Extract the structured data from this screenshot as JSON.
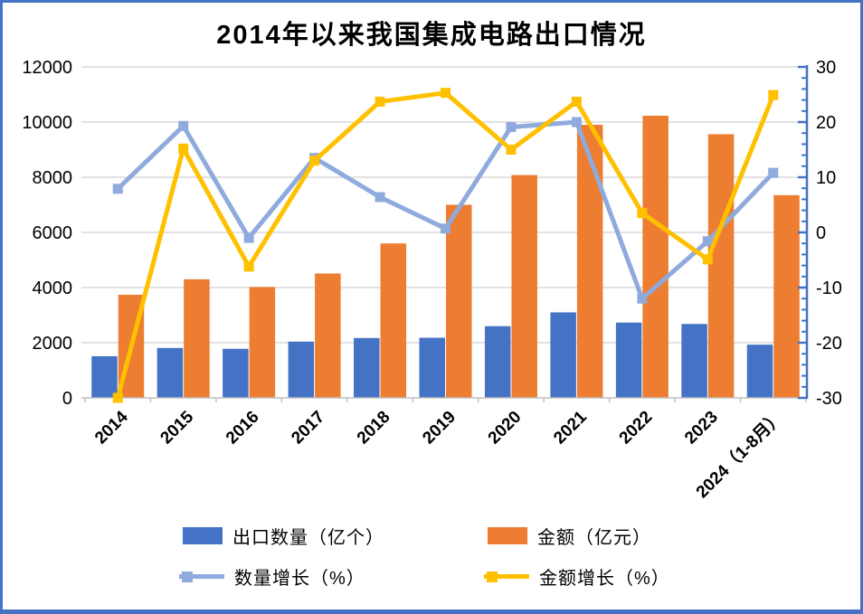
{
  "window": {
    "background": "#ffffff",
    "border_color": "#4472C4"
  },
  "chart_data": {
    "type": "combo-bar-line",
    "title": "2014年以来我国集成电路出口情况",
    "categories": [
      "2014",
      "2015",
      "2016",
      "2017",
      "2018",
      "2019",
      "2020",
      "2021",
      "2022",
      "2023",
      "2024（1-8月）"
    ],
    "series": [
      {
        "name": "出口数量（亿个）",
        "type": "bar",
        "axis": "left",
        "color": "#4472C4",
        "values": [
          1510,
          1810,
          1780,
          2040,
          2170,
          2180,
          2600,
          3100,
          2730,
          2680,
          1930
        ]
      },
      {
        "name": "金额（亿元）",
        "type": "bar",
        "axis": "left",
        "color": "#ED7D31",
        "values": [
          3740,
          4300,
          4020,
          4510,
          5600,
          7000,
          8080,
          9900,
          10230,
          9560,
          7350
        ]
      },
      {
        "name": "数量增长（%）",
        "type": "line",
        "axis": "right",
        "color": "#8FAADC",
        "marker": "square",
        "values": [
          7.9,
          19.3,
          -1,
          13.5,
          6.4,
          0.7,
          19.1,
          20,
          -12,
          -1.6,
          10.8
        ]
      },
      {
        "name": "金额增长（%）",
        "type": "line",
        "axis": "right",
        "color": "#FFC000",
        "marker": "square",
        "values": [
          -30,
          15.2,
          -6.2,
          13,
          23.7,
          25.3,
          15,
          23.7,
          3.5,
          -4.9,
          24.9
        ]
      }
    ],
    "left_axis": {
      "min": 0,
      "max": 12000,
      "ticks": [
        "0",
        "2000",
        "4000",
        "6000",
        "8000",
        "10000",
        "12000"
      ],
      "label_color": "#000000"
    },
    "right_axis": {
      "min": -30,
      "max": 30,
      "ticks": [
        "-30",
        "-20",
        "-10",
        "0",
        "10",
        "20",
        "30"
      ],
      "minor_step": 2,
      "label_color": "#000000",
      "negative_label_color": "#E81B23",
      "axis_color": "#4472C4"
    },
    "x_axis": {
      "color": "#BFBFBF",
      "label_rotation": -45
    },
    "grid": {
      "show": true,
      "color": "#D9D9D9"
    },
    "legend_position": "bottom"
  }
}
